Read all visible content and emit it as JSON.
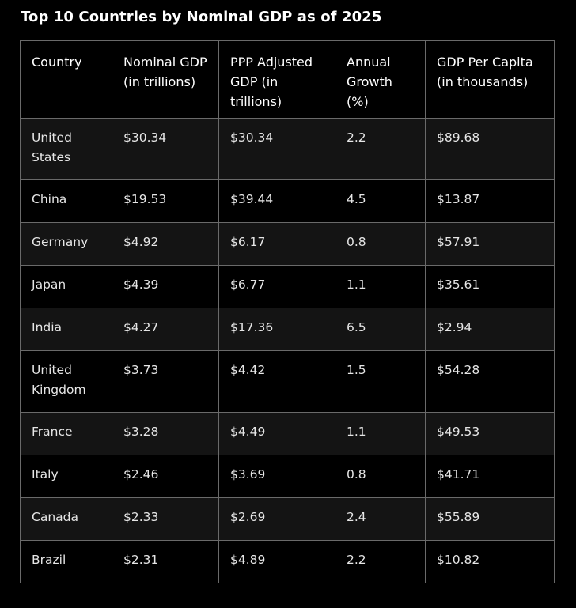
{
  "chart_data": {
    "type": "table",
    "title": "Top 10 Countries by Nominal GDP as of 2025",
    "columns": [
      "Country",
      "Nominal GDP (in trillions)",
      "PPP Adjusted GDP (in trillions)",
      "Annual Growth (%)",
      "GDP Per Capita (in thousands)"
    ],
    "rows": [
      [
        "United States",
        "$30.34",
        "$30.34",
        "2.2",
        "$89.68"
      ],
      [
        "China",
        "$19.53",
        "$39.44",
        "4.5",
        "$13.87"
      ],
      [
        "Germany",
        "$4.92",
        "$6.17",
        "0.8",
        "$57.91"
      ],
      [
        "Japan",
        "$4.39",
        "$6.77",
        "1.1",
        "$35.61"
      ],
      [
        "India",
        "$4.27",
        "$17.36",
        "6.5",
        "$2.94"
      ],
      [
        "United Kingdom",
        "$3.73",
        "$4.42",
        "1.5",
        "$54.28"
      ],
      [
        "France",
        "$3.28",
        "$4.49",
        "1.1",
        "$49.53"
      ],
      [
        "Italy",
        "$2.46",
        "$3.69",
        "0.8",
        "$41.71"
      ],
      [
        "Canada",
        "$2.33",
        "$2.69",
        "2.4",
        "$55.89"
      ],
      [
        "Brazil",
        "$2.31",
        "$4.89",
        "2.2",
        "$10.82"
      ]
    ]
  }
}
